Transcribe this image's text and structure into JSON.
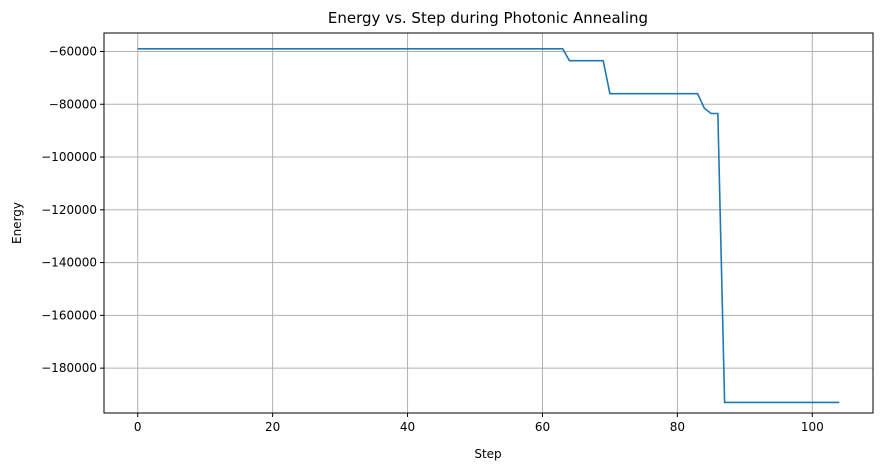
{
  "chart_data": {
    "type": "line",
    "title": "Energy vs. Step during Photonic Annealing",
    "xlabel": "Step",
    "ylabel": "Energy",
    "xlim": [
      -5,
      109
    ],
    "ylim": [
      -197000,
      -53000
    ],
    "x_ticks": [
      0,
      20,
      40,
      60,
      80,
      100
    ],
    "y_ticks": [
      -180000,
      -160000,
      -140000,
      -120000,
      -100000,
      -80000,
      -60000
    ],
    "grid": true,
    "line_color": "#1f77b4",
    "series": [
      {
        "x": [
          0,
          63,
          64,
          69,
          70,
          83,
          84,
          85,
          86,
          87,
          104
        ],
        "y": [
          -59000,
          -59000,
          -63500,
          -63500,
          -76000,
          -76000,
          -81500,
          -83500,
          -83500,
          -193000,
          -193000
        ]
      }
    ]
  }
}
